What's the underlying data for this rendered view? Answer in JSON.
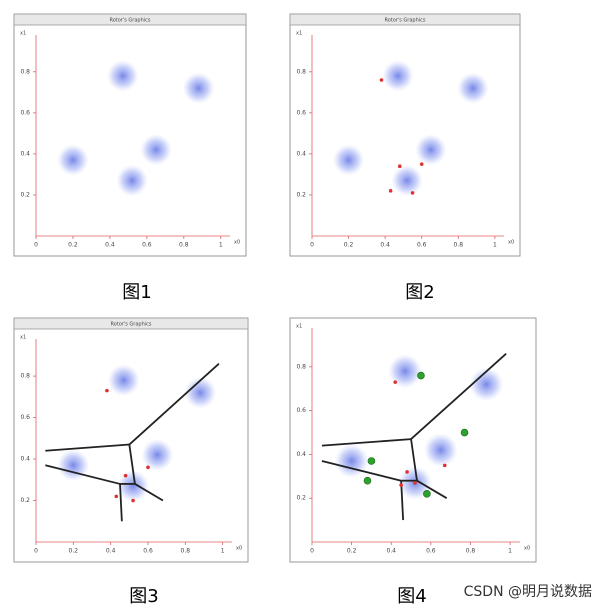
{
  "chart_data": [
    {
      "type": "scatter",
      "title": "Rotor's Graphics",
      "x_label": "x0",
      "y_label": "x1",
      "xlim": [
        0,
        1.05
      ],
      "ylim": [
        0,
        0.95
      ],
      "xticks": [
        0,
        0.2,
        0.4,
        0.6,
        0.8,
        1
      ],
      "yticks": [
        0.2,
        0.4,
        0.6,
        0.8
      ],
      "clusters": {
        "color": "#5a6ee6",
        "spread": 0.085,
        "x": [
          0.47,
          0.88,
          0.2,
          0.65,
          0.52
        ],
        "y": [
          0.78,
          0.72,
          0.37,
          0.42,
          0.27
        ]
      }
    },
    {
      "type": "scatter",
      "title": "Rotor's Graphics",
      "x_label": "x0",
      "y_label": "x1",
      "xlim": [
        0,
        1.05
      ],
      "ylim": [
        0,
        0.95
      ],
      "xticks": [
        0,
        0.2,
        0.4,
        0.6,
        0.8,
        1
      ],
      "yticks": [
        0.2,
        0.4,
        0.6,
        0.8
      ],
      "clusters": {
        "color": "#5a6ee6",
        "spread": 0.085,
        "x": [
          0.47,
          0.88,
          0.2,
          0.65,
          0.52
        ],
        "y": [
          0.78,
          0.72,
          0.37,
          0.42,
          0.27
        ]
      },
      "centroids": {
        "color": "#e03030",
        "x": [
          0.38,
          0.48,
          0.55,
          0.43,
          0.6
        ],
        "y": [
          0.76,
          0.34,
          0.21,
          0.22,
          0.35
        ]
      }
    },
    {
      "type": "scatter",
      "title": "Rotor's Graphics",
      "x_label": "x0",
      "y_label": "x1",
      "xlim": [
        0,
        1.05
      ],
      "ylim": [
        0,
        0.95
      ],
      "xticks": [
        0,
        0.2,
        0.4,
        0.6,
        0.8,
        1
      ],
      "yticks": [
        0.2,
        0.4,
        0.6,
        0.8
      ],
      "clusters": {
        "color": "#5a6ee6",
        "spread": 0.085,
        "x": [
          0.47,
          0.88,
          0.2,
          0.65,
          0.52
        ],
        "y": [
          0.78,
          0.72,
          0.37,
          0.42,
          0.27
        ]
      },
      "centroids": {
        "color": "#e03030",
        "x": [
          0.38,
          0.6,
          0.48,
          0.43,
          0.52
        ],
        "y": [
          0.73,
          0.36,
          0.32,
          0.22,
          0.2
        ]
      },
      "boundaries": [
        [
          0.05,
          0.44,
          0.5,
          0.47
        ],
        [
          0.5,
          0.47,
          0.98,
          0.86
        ],
        [
          0.5,
          0.47,
          0.53,
          0.28
        ],
        [
          0.05,
          0.37,
          0.45,
          0.28
        ],
        [
          0.45,
          0.28,
          0.53,
          0.28
        ],
        [
          0.53,
          0.28,
          0.68,
          0.2
        ],
        [
          0.45,
          0.28,
          0.46,
          0.1
        ]
      ]
    },
    {
      "type": "scatter",
      "x_label": "x0",
      "y_label": "x1",
      "xlim": [
        0,
        1.05
      ],
      "ylim": [
        0,
        0.95
      ],
      "xticks": [
        0,
        0.2,
        0.4,
        0.6,
        0.8,
        1
      ],
      "yticks": [
        0.2,
        0.4,
        0.6,
        0.8
      ],
      "clusters": {
        "color": "#5a6ee6",
        "spread": 0.085,
        "x": [
          0.47,
          0.88,
          0.2,
          0.65,
          0.52
        ],
        "y": [
          0.78,
          0.72,
          0.37,
          0.42,
          0.27
        ]
      },
      "centroids": {
        "color": "#e03030",
        "x": [
          0.42,
          0.67,
          0.48,
          0.45,
          0.52
        ],
        "y": [
          0.73,
          0.35,
          0.32,
          0.26,
          0.27
        ]
      },
      "new_centroids": {
        "color": "#2ea02e",
        "x": [
          0.55,
          0.77,
          0.3,
          0.28,
          0.58
        ],
        "y": [
          0.76,
          0.5,
          0.37,
          0.28,
          0.22
        ]
      },
      "boundaries": [
        [
          0.05,
          0.44,
          0.5,
          0.47
        ],
        [
          0.5,
          0.47,
          0.98,
          0.86
        ],
        [
          0.5,
          0.47,
          0.53,
          0.28
        ],
        [
          0.05,
          0.37,
          0.45,
          0.28
        ],
        [
          0.45,
          0.28,
          0.53,
          0.28
        ],
        [
          0.53,
          0.28,
          0.68,
          0.2
        ],
        [
          0.45,
          0.28,
          0.46,
          0.1
        ]
      ]
    }
  ],
  "captions": [
    "图1",
    "图2",
    "图3",
    "图4"
  ],
  "watermark": "CSDN @明月说数据"
}
